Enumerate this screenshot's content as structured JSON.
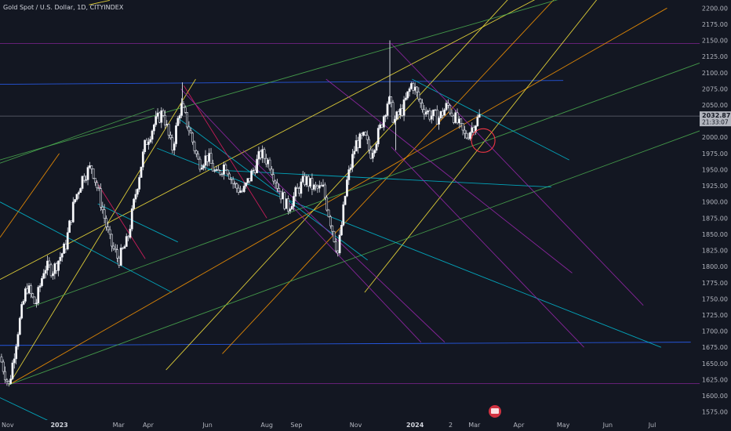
{
  "chart_data": {
    "type": "candlestick",
    "title": "Gold Spot / U.S. Dollar, 1D, CITYINDEX",
    "ylim": [
      1562.5,
      2212.5
    ],
    "y_ticks": [
      1575,
      1600,
      1625,
      1650,
      1675,
      1700,
      1725,
      1750,
      1775,
      1800,
      1825,
      1850,
      1875,
      1900,
      1925,
      1950,
      1975,
      2000,
      2025,
      2050,
      2075,
      2100,
      2125,
      2150,
      2175,
      2200
    ],
    "x_labels": [
      {
        "label": "Nov",
        "x": 0,
        "bold": false
      },
      {
        "label": "2023",
        "x": 2.0,
        "bold": true
      },
      {
        "label": "Mar",
        "x": 4.0,
        "bold": false
      },
      {
        "label": "Apr",
        "x": 5.0,
        "bold": false
      },
      {
        "label": "Jun",
        "x": 7.0,
        "bold": false
      },
      {
        "label": "Aug",
        "x": 9.0,
        "bold": false
      },
      {
        "label": "Sep",
        "x": 10.0,
        "bold": false
      },
      {
        "label": "Nov",
        "x": 12.0,
        "bold": false
      },
      {
        "label": "2024",
        "x": 14.0,
        "bold": true
      },
      {
        "label": "2",
        "x": 15.2,
        "bold": false
      },
      {
        "label": "Mar",
        "x": 16.0,
        "bold": false
      },
      {
        "label": "Apr",
        "x": 17.5,
        "bold": false
      },
      {
        "label": "May",
        "x": 19.0,
        "bold": false
      },
      {
        "label": "Jun",
        "x": 20.5,
        "bold": false
      },
      {
        "label": "Jul",
        "x": 22.0,
        "bold": false
      }
    ],
    "xlim": [
      0,
      23.6
    ],
    "price_anchors": [
      [
        0.0,
        1660
      ],
      [
        0.3,
        1615
      ],
      [
        0.6,
        1700
      ],
      [
        0.9,
        1770
      ],
      [
        1.2,
        1740
      ],
      [
        1.5,
        1800
      ],
      [
        1.8,
        1795
      ],
      [
        2.2,
        1830
      ],
      [
        2.5,
        1900
      ],
      [
        2.8,
        1940
      ],
      [
        3.1,
        1955
      ],
      [
        3.4,
        1900
      ],
      [
        3.7,
        1840
      ],
      [
        4.0,
        1810
      ],
      [
        4.3,
        1840
      ],
      [
        4.6,
        1920
      ],
      [
        4.9,
        1990
      ],
      [
        5.2,
        2020
      ],
      [
        5.5,
        2040
      ],
      [
        5.8,
        1980
      ],
      [
        6.1,
        2050
      ],
      [
        6.4,
        2010
      ],
      [
        6.7,
        1960
      ],
      [
        7.0,
        1970
      ],
      [
        7.3,
        1940
      ],
      [
        7.6,
        1960
      ],
      [
        7.9,
        1925
      ],
      [
        8.2,
        1915
      ],
      [
        8.5,
        1945
      ],
      [
        8.8,
        1975
      ],
      [
        9.1,
        1960
      ],
      [
        9.4,
        1920
      ],
      [
        9.7,
        1890
      ],
      [
        10.0,
        1915
      ],
      [
        10.3,
        1935
      ],
      [
        10.6,
        1920
      ],
      [
        10.9,
        1920
      ],
      [
        11.2,
        1860
      ],
      [
        11.4,
        1820
      ],
      [
        11.7,
        1930
      ],
      [
        12.0,
        1990
      ],
      [
        12.3,
        2000
      ],
      [
        12.5,
        1975
      ],
      [
        12.8,
        2010
      ],
      [
        13.1,
        2060
      ],
      [
        13.3,
        2025
      ],
      [
        13.6,
        2045
      ],
      [
        13.9,
        2085
      ],
      [
        14.2,
        2050
      ],
      [
        14.5,
        2035
      ],
      [
        14.8,
        2030
      ],
      [
        15.1,
        2050
      ],
      [
        15.4,
        2025
      ],
      [
        15.7,
        2000
      ],
      [
        16.0,
        2020
      ],
      [
        16.2,
        2034
      ]
    ],
    "spikes": [
      {
        "x": 13.15,
        "high": 2150
      },
      {
        "x": 6.15,
        "high": 2085
      },
      {
        "x": 13.35,
        "low": 1980
      }
    ],
    "current_price": {
      "label": "2032.87",
      "timer": "21:33:07",
      "value": 2032.87
    },
    "horizontal_lines": [
      {
        "y": 2145,
        "color": "#9c27b0"
      },
      {
        "y": 2032.87,
        "color": "#787b86"
      },
      {
        "y": 1619,
        "color": "#9c27b0"
      }
    ],
    "trend_lines": [
      {
        "color": "#2962ff",
        "from": [
          0,
          2082
        ],
        "to": [
          19.0,
          2088
        ]
      },
      {
        "color": "#2962ff",
        "from": [
          0,
          1678
        ],
        "to": [
          23.3,
          1683
        ]
      },
      {
        "color": "#ffeb3b",
        "from": [
          0,
          1780
        ],
        "to": [
          22.5,
          2320
        ]
      },
      {
        "color": "#ff9800",
        "from": [
          0.3,
          1617
        ],
        "to": [
          22.5,
          2200
        ]
      },
      {
        "color": "#ff9800",
        "from": [
          0,
          1845
        ],
        "to": [
          2.0,
          1975
        ]
      },
      {
        "color": "#ffeb3b",
        "from": [
          0.3,
          1617
        ],
        "to": [
          6.6,
          2090
        ]
      },
      {
        "color": "#ffeb3b",
        "from": [
          5.6,
          1640
        ],
        "to": [
          22.5,
          2480
        ]
      },
      {
        "color": "#ff9800",
        "from": [
          7.5,
          1665
        ],
        "to": [
          22.5,
          2400
        ]
      },
      {
        "color": "#ffeb3b",
        "from": [
          12.3,
          1760
        ],
        "to": [
          22.5,
          2350
        ]
      },
      {
        "color": "#4caf50",
        "from": [
          0.3,
          1617
        ],
        "to": [
          23.6,
          2010
        ]
      },
      {
        "color": "#4caf50",
        "from": [
          0.9,
          1735
        ],
        "to": [
          23.6,
          2115
        ]
      },
      {
        "color": "#4caf50",
        "from": [
          0,
          1965
        ],
        "to": [
          22.0,
          2255
        ]
      },
      {
        "color": "#4caf50",
        "from": [
          0,
          1960
        ],
        "to": [
          5.2,
          2045
        ]
      },
      {
        "color": "#00bcd4",
        "from": [
          0,
          1900
        ],
        "to": [
          5.8,
          1760
        ]
      },
      {
        "color": "#00bcd4",
        "from": [
          0,
          1597
        ],
        "to": [
          1.7,
          1560
        ]
      },
      {
        "color": "#00bcd4",
        "from": [
          3.3,
          1897
        ],
        "to": [
          6.0,
          1838
        ]
      },
      {
        "color": "#00bcd4",
        "from": [
          5.3,
          1983
        ],
        "to": [
          22.3,
          1675
        ]
      },
      {
        "color": "#00bcd4",
        "from": [
          6.0,
          2030
        ],
        "to": [
          12.4,
          1810
        ]
      },
      {
        "color": "#00bcd4",
        "from": [
          7.0,
          1950
        ],
        "to": [
          18.6,
          1923
        ]
      },
      {
        "color": "#00bcd4",
        "from": [
          13.9,
          2090
        ],
        "to": [
          19.2,
          1965
        ]
      },
      {
        "color": "#e91e63",
        "from": [
          3.2,
          1935
        ],
        "to": [
          4.9,
          1812
        ]
      },
      {
        "color": "#e91e63",
        "from": [
          6.2,
          2080
        ],
        "to": [
          9.0,
          1875
        ]
      },
      {
        "color": "#9c27b0",
        "from": [
          6.1,
          2075
        ],
        "to": [
          14.2,
          1683
        ]
      },
      {
        "color": "#9c27b0",
        "from": [
          8.2,
          1980
        ],
        "to": [
          15.0,
          1683
        ]
      },
      {
        "color": "#9c27b0",
        "from": [
          11.0,
          2090
        ],
        "to": [
          19.3,
          1790
        ]
      },
      {
        "color": "#9c27b0",
        "from": [
          13.2,
          2145
        ],
        "to": [
          21.7,
          1740
        ]
      },
      {
        "color": "#9c27b0",
        "from": [
          13.2,
          1985
        ],
        "to": [
          19.7,
          1675
        ]
      },
      {
        "color": "#ffeb3b",
        "from": [
          3.0,
          2205
        ],
        "to": [
          3.7,
          2212
        ]
      }
    ],
    "circle": {
      "x": 16.3,
      "y": 1995,
      "r": 15,
      "color": "#f23645"
    },
    "icon": "flag-icon"
  }
}
